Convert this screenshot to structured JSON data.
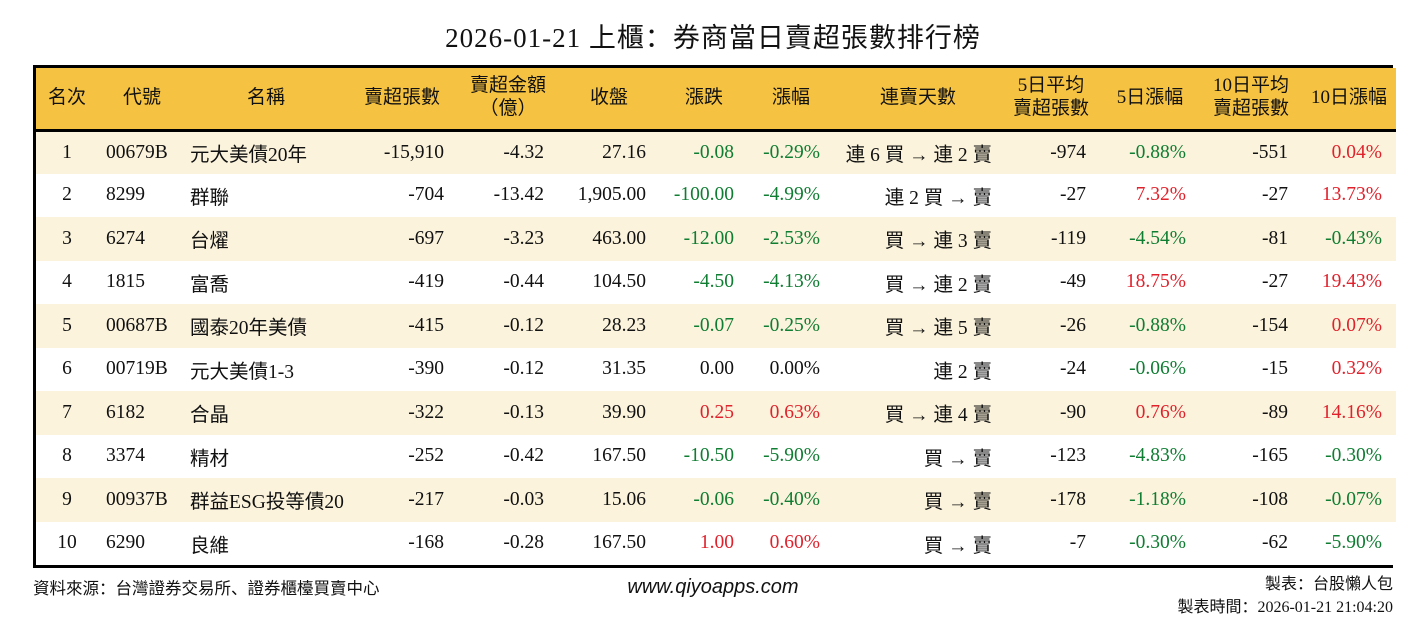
{
  "title": "2026-01-21 上櫃：券商當日賣超張數排行榜",
  "colors": {
    "header_bg": "#F5C242",
    "row_odd_bg": "#FBF3DC",
    "row_even_bg": "#FFFFFF",
    "up_red": "#E0222C",
    "down_green": "#0F7D32",
    "text": "#111111",
    "border": "#000000"
  },
  "chart_data": {
    "type": "table",
    "title": "2026-01-21 上櫃：券商當日賣超張數排行榜",
    "columns": [
      "名次",
      "代號",
      "名稱",
      "賣超張數",
      "賣超金額\n（億）",
      "收盤",
      "漲跌",
      "漲幅",
      "連賣天數",
      "5日平均\n賣超張數",
      "5日漲幅",
      "10日平均\n賣超張數",
      "10日漲幅"
    ],
    "rows": [
      {
        "rank": "1",
        "code": "00679B",
        "name": "元大美債20年",
        "sell_volume": "-15,910",
        "sell_amount": "-4.32",
        "close": "27.16",
        "change": "-0.08",
        "change_color": "g",
        "change_pct": "-0.29%",
        "change_pct_color": "g",
        "streak": "連 6 買 → 連 2 賣",
        "avg5_volume": "-974",
        "pct5": "-0.88%",
        "pct5_color": "g",
        "avg10_volume": "-551",
        "pct10": "0.04%",
        "pct10_color": "r"
      },
      {
        "rank": "2",
        "code": "8299",
        "name": "群聯",
        "sell_volume": "-704",
        "sell_amount": "-13.42",
        "close": "1,905.00",
        "change": "-100.00",
        "change_color": "g",
        "change_pct": "-4.99%",
        "change_pct_color": "g",
        "streak": "連 2 買 → 賣",
        "avg5_volume": "-27",
        "pct5": "7.32%",
        "pct5_color": "r",
        "avg10_volume": "-27",
        "pct10": "13.73%",
        "pct10_color": "r"
      },
      {
        "rank": "3",
        "code": "6274",
        "name": "台燿",
        "sell_volume": "-697",
        "sell_amount": "-3.23",
        "close": "463.00",
        "change": "-12.00",
        "change_color": "g",
        "change_pct": "-2.53%",
        "change_pct_color": "g",
        "streak": "買 → 連 3 賣",
        "avg5_volume": "-119",
        "pct5": "-4.54%",
        "pct5_color": "g",
        "avg10_volume": "-81",
        "pct10": "-0.43%",
        "pct10_color": "g"
      },
      {
        "rank": "4",
        "code": "1815",
        "name": "富喬",
        "sell_volume": "-419",
        "sell_amount": "-0.44",
        "close": "104.50",
        "change": "-4.50",
        "change_color": "g",
        "change_pct": "-4.13%",
        "change_pct_color": "g",
        "streak": "買 → 連 2 賣",
        "avg5_volume": "-49",
        "pct5": "18.75%",
        "pct5_color": "r",
        "avg10_volume": "-27",
        "pct10": "19.43%",
        "pct10_color": "r"
      },
      {
        "rank": "5",
        "code": "00687B",
        "name": "國泰20年美債",
        "sell_volume": "-415",
        "sell_amount": "-0.12",
        "close": "28.23",
        "change": "-0.07",
        "change_color": "g",
        "change_pct": "-0.25%",
        "change_pct_color": "g",
        "streak": "買 → 連 5 賣",
        "avg5_volume": "-26",
        "pct5": "-0.88%",
        "pct5_color": "g",
        "avg10_volume": "-154",
        "pct10": "0.07%",
        "pct10_color": "r"
      },
      {
        "rank": "6",
        "code": "00719B",
        "name": "元大美債1-3",
        "sell_volume": "-390",
        "sell_amount": "-0.12",
        "close": "31.35",
        "change": "0.00",
        "change_color": "k",
        "change_pct": "0.00%",
        "change_pct_color": "k",
        "streak": "連 2 賣",
        "avg5_volume": "-24",
        "pct5": "-0.06%",
        "pct5_color": "g",
        "avg10_volume": "-15",
        "pct10": "0.32%",
        "pct10_color": "r"
      },
      {
        "rank": "7",
        "code": "6182",
        "name": "合晶",
        "sell_volume": "-322",
        "sell_amount": "-0.13",
        "close": "39.90",
        "change": "0.25",
        "change_color": "r",
        "change_pct": "0.63%",
        "change_pct_color": "r",
        "streak": "買 → 連 4 賣",
        "avg5_volume": "-90",
        "pct5": "0.76%",
        "pct5_color": "r",
        "avg10_volume": "-89",
        "pct10": "14.16%",
        "pct10_color": "r"
      },
      {
        "rank": "8",
        "code": "3374",
        "name": "精材",
        "sell_volume": "-252",
        "sell_amount": "-0.42",
        "close": "167.50",
        "change": "-10.50",
        "change_color": "g",
        "change_pct": "-5.90%",
        "change_pct_color": "g",
        "streak": "買 → 賣",
        "avg5_volume": "-123",
        "pct5": "-4.83%",
        "pct5_color": "g",
        "avg10_volume": "-165",
        "pct10": "-0.30%",
        "pct10_color": "g"
      },
      {
        "rank": "9",
        "code": "00937B",
        "name": "群益ESG投等債20",
        "sell_volume": "-217",
        "sell_amount": "-0.03",
        "close": "15.06",
        "change": "-0.06",
        "change_color": "g",
        "change_pct": "-0.40%",
        "change_pct_color": "g",
        "streak": "買 → 賣",
        "avg5_volume": "-178",
        "pct5": "-1.18%",
        "pct5_color": "g",
        "avg10_volume": "-108",
        "pct10": "-0.07%",
        "pct10_color": "g"
      },
      {
        "rank": "10",
        "code": "6290",
        "name": "良維",
        "sell_volume": "-168",
        "sell_amount": "-0.28",
        "close": "167.50",
        "change": "1.00",
        "change_color": "r",
        "change_pct": "0.60%",
        "change_pct_color": "r",
        "streak": "買 → 賣",
        "avg5_volume": "-7",
        "pct5": "-0.30%",
        "pct5_color": "g",
        "avg10_volume": "-62",
        "pct10": "-5.90%",
        "pct10_color": "g"
      }
    ]
  },
  "footer": {
    "source": "資料來源：台灣證券交易所、證券櫃檯買賣中心",
    "website": "www.qiyoapps.com",
    "maker": "製表：台股懶人包",
    "made_time": "製表時間：2026-01-21 21:04:20"
  }
}
